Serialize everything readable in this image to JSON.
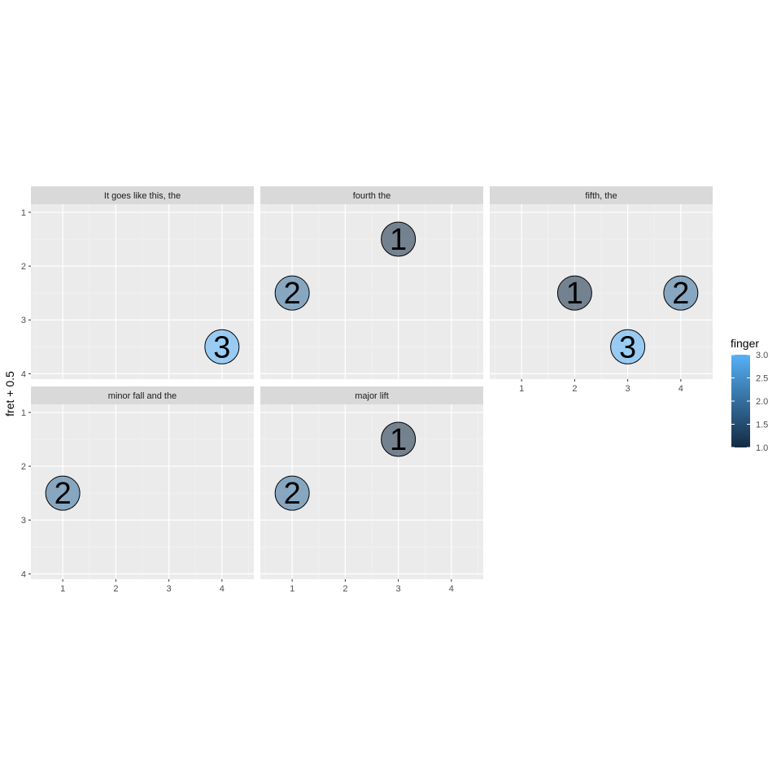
{
  "chart_data": {
    "type": "scatter",
    "ylabel": "fret + 0.5",
    "xlabel": "",
    "xlim": [
      0.4,
      4.6
    ],
    "ylim": [
      1,
      4
    ],
    "y_reversed": true,
    "x_ticks": [
      "1",
      "2",
      "3",
      "4"
    ],
    "y_ticks": [
      "1",
      "2",
      "3",
      "4"
    ],
    "grid": true,
    "legend": {
      "title": "finger",
      "placement": "right",
      "type": "colorbar",
      "ticks": [
        "1.0",
        "1.5",
        "2.0",
        "2.5",
        "3.0"
      ],
      "range": [
        1,
        3
      ],
      "low_color": "#132B43",
      "high_color": "#56B1F7"
    },
    "panels": [
      {
        "title": "It goes like this, the",
        "points": [
          {
            "x": 4,
            "y": 3.5,
            "finger": 3,
            "label": "3"
          }
        ]
      },
      {
        "title": "fourth the",
        "points": [
          {
            "x": 3,
            "y": 1.5,
            "finger": 1,
            "label": "1"
          },
          {
            "x": 1,
            "y": 2.5,
            "finger": 2,
            "label": "2"
          }
        ]
      },
      {
        "title": "fifth, the",
        "points": [
          {
            "x": 2,
            "y": 2.5,
            "finger": 1,
            "label": "1"
          },
          {
            "x": 4,
            "y": 2.5,
            "finger": 2,
            "label": "2"
          },
          {
            "x": 3,
            "y": 3.5,
            "finger": 3,
            "label": "3"
          }
        ]
      },
      {
        "title": "minor fall and the",
        "points": [
          {
            "x": 1,
            "y": 2.5,
            "finger": 2,
            "label": "2"
          }
        ]
      },
      {
        "title": "major lift",
        "points": [
          {
            "x": 3,
            "y": 1.5,
            "finger": 1,
            "label": "1"
          },
          {
            "x": 1,
            "y": 2.5,
            "finger": 2,
            "label": "2"
          }
        ]
      }
    ]
  }
}
